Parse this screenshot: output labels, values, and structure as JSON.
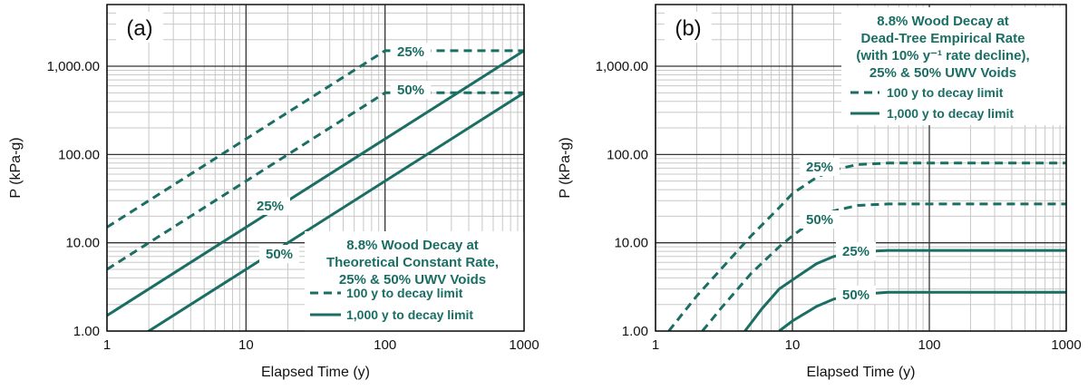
{
  "colors": {
    "series": "#1a6e64",
    "major_grid": "#333333",
    "minor_grid": "#c8c8c8",
    "frame": "#111111"
  },
  "chart_data": [
    {
      "type": "line",
      "panel_label": "(a)",
      "xlabel": "Elapsed Time (y)",
      "ylabel": "P (kPa-g)",
      "xscale": "log",
      "yscale": "log",
      "xlim": [
        1,
        1000
      ],
      "ylim": [
        1,
        5000
      ],
      "xticks": [
        "1",
        "10",
        "100",
        "1000"
      ],
      "yticks": [
        "1.00",
        "10.00",
        "100.00",
        "1,000.00"
      ],
      "grid": true,
      "legend_title": [
        "8.8% Wood Decay at",
        "Theoretical Constant Rate,",
        "25% & 50% UWV Voids"
      ],
      "legend_entries": [
        {
          "label": "100 y to decay limit",
          "style": "dashed"
        },
        {
          "label": "1,000 y to decay limit",
          "style": "solid"
        }
      ],
      "legend_placement": "bottom-right",
      "annotations": [
        "25%",
        "50%",
        "25%",
        "50%"
      ],
      "series": [
        {
          "style": "dashed",
          "points": [
            [
              1,
              15
            ],
            [
              100,
              1500
            ],
            [
              1000,
              1500
            ]
          ]
        },
        {
          "style": "dashed",
          "points": [
            [
              1,
              5
            ],
            [
              100,
              500
            ],
            [
              1000,
              500
            ]
          ]
        },
        {
          "style": "solid",
          "points": [
            [
              1,
              1.5
            ],
            [
              1000,
              1500
            ]
          ]
        },
        {
          "style": "solid",
          "points": [
            [
              1,
              0.5
            ],
            [
              1000,
              500
            ]
          ]
        }
      ]
    },
    {
      "type": "line",
      "panel_label": "(b)",
      "xlabel": "Elapsed Time (y)",
      "ylabel": "P (kPa-g)",
      "xscale": "log",
      "yscale": "log",
      "xlim": [
        1,
        1000
      ],
      "ylim": [
        1,
        5000
      ],
      "xticks": [
        "1",
        "10",
        "100",
        "1000"
      ],
      "yticks": [
        "1.00",
        "10.00",
        "100.00",
        "1,000.00"
      ],
      "grid": true,
      "legend_title": [
        "8.8% Wood Decay at",
        "Dead-Tree Empirical Rate",
        "(with 10% y⁻¹ rate decline),",
        "25% & 50% UWV Voids"
      ],
      "legend_entries": [
        {
          "label": "100 y to decay limit",
          "style": "dashed"
        },
        {
          "label": "1,000 y to decay limit",
          "style": "solid"
        }
      ],
      "legend_placement": "top-right",
      "annotations": [
        "25%",
        "50%",
        "25%",
        "50%"
      ],
      "series": [
        {
          "style": "dashed",
          "points": [
            [
              1.25,
              1
            ],
            [
              2,
              2.5
            ],
            [
              3,
              5
            ],
            [
              5,
              12
            ],
            [
              8,
              25
            ],
            [
              10,
              36
            ],
            [
              15,
              55
            ],
            [
              20,
              67
            ],
            [
              30,
              77
            ],
            [
              50,
              80
            ],
            [
              100,
              80
            ],
            [
              1000,
              80
            ]
          ]
        },
        {
          "style": "dashed",
          "points": [
            [
              2.2,
              1
            ],
            [
              3,
              1.8
            ],
            [
              5,
              4.5
            ],
            [
              8,
              9
            ],
            [
              10,
              12
            ],
            [
              15,
              19
            ],
            [
              20,
              23
            ],
            [
              30,
              26.5
            ],
            [
              50,
              27.5
            ],
            [
              100,
              27.5
            ],
            [
              1000,
              27.5
            ]
          ]
        },
        {
          "style": "solid",
          "points": [
            [
              4.5,
              1
            ],
            [
              6,
              1.8
            ],
            [
              8,
              3
            ],
            [
              10,
              3.8
            ],
            [
              15,
              5.8
            ],
            [
              20,
              7
            ],
            [
              30,
              7.9
            ],
            [
              50,
              8.2
            ],
            [
              100,
              8.2
            ],
            [
              1000,
              8.2
            ]
          ]
        },
        {
          "style": "solid",
          "points": [
            [
              8,
              1
            ],
            [
              10,
              1.3
            ],
            [
              15,
              1.9
            ],
            [
              20,
              2.3
            ],
            [
              30,
              2.6
            ],
            [
              50,
              2.75
            ],
            [
              100,
              2.75
            ],
            [
              1000,
              2.75
            ]
          ]
        }
      ]
    }
  ]
}
